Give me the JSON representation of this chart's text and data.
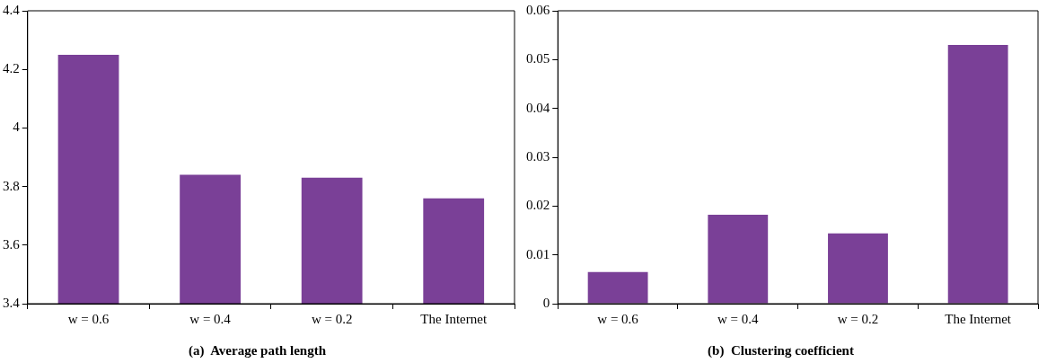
{
  "chart_data": [
    {
      "type": "bar",
      "title": "(a)  Average path length",
      "categories": [
        "w = 0.6",
        "w = 0.4",
        "w = 0.2",
        "The Internet"
      ],
      "values": [
        4.25,
        3.84,
        3.83,
        3.76
      ],
      "color": "#7a4097",
      "ylim": [
        3.4,
        4.4
      ],
      "yticks": [
        3.4,
        3.6,
        3.8,
        4,
        4.2,
        4.4
      ],
      "grid": false,
      "legend": false
    },
    {
      "type": "bar",
      "title": "(b)  Clustering coefficient",
      "categories": [
        "w = 0.6",
        "w = 0.4",
        "w = 0.2",
        "The Internet"
      ],
      "values": [
        0.0065,
        0.0182,
        0.0144,
        0.053
      ],
      "color": "#7a4097",
      "ylim": [
        0,
        0.06
      ],
      "yticks": [
        0,
        0.01,
        0.02,
        0.03,
        0.04,
        0.05,
        0.06
      ],
      "grid": false,
      "legend": false
    }
  ]
}
